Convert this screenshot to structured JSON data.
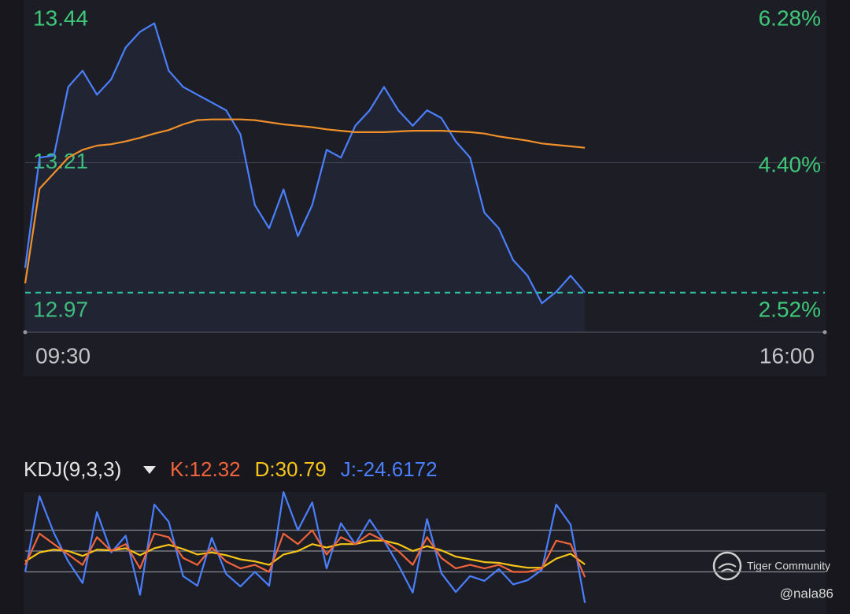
{
  "chart_data": [
    {
      "type": "line",
      "fill": true,
      "x": [
        0,
        7,
        14,
        21,
        28,
        35,
        42,
        49,
        56,
        63,
        70,
        77,
        84,
        91,
        98,
        105,
        112,
        119,
        126,
        133,
        140,
        147,
        154,
        161,
        168,
        175,
        182,
        189,
        196,
        203,
        210,
        217,
        224,
        231,
        238,
        245,
        252,
        259,
        266,
        273
      ],
      "xlim": [
        0,
        390
      ],
      "xticks": [
        {
          "value": 0,
          "label": "09:30"
        },
        {
          "value": 390,
          "label": "16:00"
        }
      ],
      "ylim": [
        12.97,
        13.44
      ],
      "yticks": [
        12.97,
        13.21,
        13.44
      ],
      "y2lim": [
        2.52,
        6.28
      ],
      "y2ticks": [
        {
          "value": 2.52,
          "label": "2.52%"
        },
        {
          "value": 4.4,
          "label": "4.40%"
        },
        {
          "value": 6.28,
          "label": "6.28%"
        }
      ],
      "grid": true,
      "series": [
        {
          "color": "#4a7fff",
          "values": [
            13.061,
            13.217,
            13.22,
            13.317,
            13.34,
            13.306,
            13.328,
            13.373,
            13.395,
            13.407,
            13.34,
            13.317,
            13.306,
            13.295,
            13.284,
            13.25,
            13.15,
            13.117,
            13.172,
            13.106,
            13.15,
            13.228,
            13.217,
            13.262,
            13.284,
            13.317,
            13.284,
            13.262,
            13.284,
            13.273,
            13.24,
            13.217,
            13.139,
            13.117,
            13.072,
            13.05,
            13.011,
            13.027,
            13.05,
            13.026
          ]
        },
        {
          "color": "#f0902a",
          "values": [
            13.039,
            13.173,
            13.195,
            13.217,
            13.228,
            13.234,
            13.236,
            13.24,
            13.245,
            13.251,
            13.256,
            13.264,
            13.27,
            13.271,
            13.271,
            13.271,
            13.27,
            13.267,
            13.264,
            13.262,
            13.26,
            13.257,
            13.255,
            13.253,
            13.253,
            13.253,
            13.254,
            13.255,
            13.255,
            13.255,
            13.254,
            13.253,
            13.251,
            13.247,
            13.244,
            13.241,
            13.237,
            13.235,
            13.233,
            13.231
          ]
        }
      ]
    },
    {
      "type": "line",
      "title": "KDJ(9,3,3)",
      "x": [
        0,
        7,
        14,
        21,
        28,
        35,
        42,
        49,
        56,
        63,
        70,
        77,
        84,
        91,
        98,
        105,
        112,
        119,
        126,
        133,
        140,
        147,
        154,
        161,
        168,
        175,
        182,
        189,
        196,
        203,
        210,
        217,
        224,
        231,
        238,
        245,
        252,
        259,
        266,
        273
      ],
      "xlim": [
        0,
        390
      ],
      "ylim": [
        -35,
        135
      ],
      "yticks": [
        20,
        50,
        80
      ],
      "grid": true,
      "show_tick_labels": false,
      "series": [
        {
          "name": "J:-24.6172",
          "color": "#4a7fff",
          "values": [
            20,
            129,
            76,
            35,
            4,
            106,
            48,
            72,
            -13,
            117,
            92,
            14,
            0,
            69,
            17,
            -1,
            20,
            0,
            135,
            80,
            120,
            25,
            90,
            60,
            95,
            65,
            30,
            -10,
            96,
            18,
            -9,
            14,
            7,
            24,
            2,
            8,
            23,
            117,
            88,
            -24.6172
          ]
        },
        {
          "name": "D:30.79",
          "color": "#f5c518",
          "values": [
            35,
            48,
            52,
            50,
            43,
            52,
            51,
            54,
            44,
            54,
            59,
            53,
            45,
            48,
            44,
            38,
            35,
            30,
            45,
            50,
            60,
            55,
            60,
            60,
            65,
            65,
            60,
            50,
            57,
            51,
            42,
            38,
            34,
            33,
            29,
            26,
            26,
            39,
            46,
            30.79
          ]
        },
        {
          "name": "K:12.32",
          "color": "#f0643c",
          "values": [
            30,
            75,
            60,
            45,
            30,
            70,
            50,
            60,
            25,
            75,
            70,
            40,
            30,
            55,
            35,
            25,
            30,
            20,
            75,
            60,
            80,
            45,
            70,
            60,
            75,
            65,
            50,
            30,
            70,
            40,
            25,
            30,
            25,
            30,
            20,
            20,
            25,
            65,
            60,
            12.32
          ]
        }
      ]
    }
  ],
  "watermark": {
    "brand": "Tiger Community",
    "user": "@nala86"
  }
}
